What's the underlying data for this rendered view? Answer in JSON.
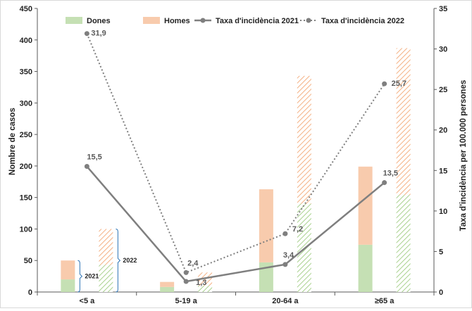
{
  "chart_data": {
    "type": "bar",
    "categories": [
      "<5 a",
      "5-19 a",
      "20-64 a",
      "≥65 a"
    ],
    "years": [
      "2021",
      "2022"
    ],
    "bar_series": [
      {
        "name": "Dones",
        "color": "#c5e0b4",
        "values_2021": [
          20,
          8,
          47,
          75
        ],
        "values_2022": [
          43,
          10,
          140,
          154
        ]
      },
      {
        "name": "Homes",
        "color": "#f8cbad",
        "values_2021": [
          30,
          8,
          116,
          124
        ],
        "values_2022": [
          57,
          21,
          203,
          233
        ]
      }
    ],
    "line_series": [
      {
        "name": "Taxa d'incidència 2021",
        "style": "solid",
        "color": "#7f7f7f",
        "values": [
          15.5,
          1.3,
          3.4,
          13.5
        ],
        "labels": [
          "15,5",
          "1,3",
          "3,4",
          "13,5"
        ]
      },
      {
        "name": "Taxa d'incidència 2022",
        "style": "dotted",
        "color": "#7f7f7f",
        "values": [
          31.9,
          2.4,
          7.2,
          25.7
        ],
        "labels": [
          "31,9",
          "2,4",
          "7,2",
          "25,7"
        ]
      }
    ],
    "ylabel": "Nombre de casos",
    "y2label": "Taxa d'incidència per 100.000 persones",
    "ylim": [
      0,
      450
    ],
    "y2lim": [
      0,
      35
    ],
    "yticks": [
      0,
      50,
      100,
      150,
      200,
      250,
      300,
      350,
      400,
      450
    ],
    "y2ticks": [
      0,
      5,
      10,
      15,
      20,
      25,
      30,
      35
    ],
    "legend_position": "top",
    "grid": false,
    "pattern_2022": "diagonal hatch"
  }
}
